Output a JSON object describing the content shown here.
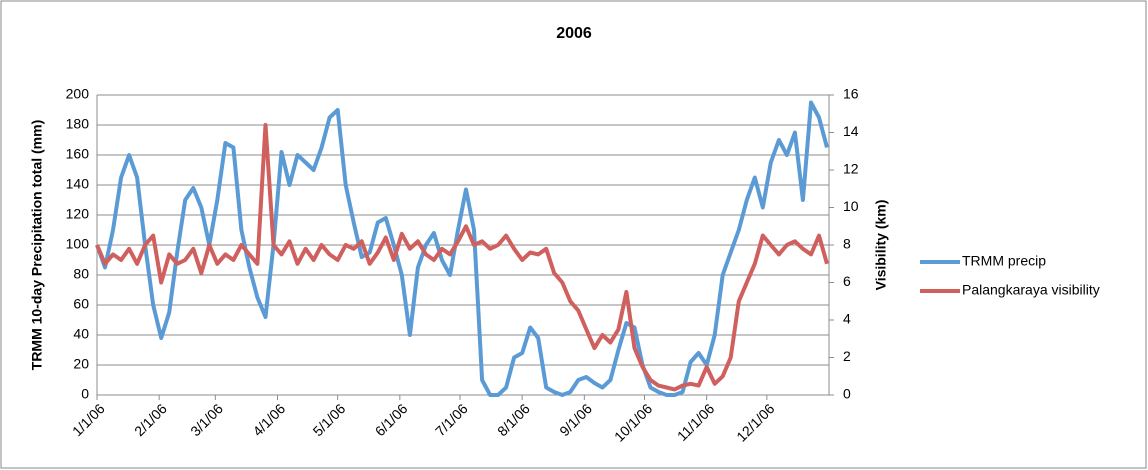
{
  "chart_data": {
    "type": "line",
    "title": "2006",
    "y_label": "TRMM 10-day Precipitation total (mm)",
    "y2_label": "Visibility (km)",
    "x": [
      0,
      4,
      8,
      12,
      16,
      20,
      24,
      28,
      32,
      36,
      40,
      44,
      48,
      52,
      56,
      60,
      64,
      68,
      72,
      76,
      80,
      84,
      88,
      92,
      96,
      100,
      104,
      108,
      112,
      116,
      120,
      124,
      128,
      132,
      136,
      140,
      144,
      148,
      152,
      156,
      160,
      164,
      168,
      172,
      176,
      180,
      184,
      188,
      192,
      196,
      200,
      204,
      208,
      212,
      216,
      220,
      224,
      228,
      232,
      236,
      240,
      244,
      248,
      252,
      256,
      260,
      264,
      268,
      272,
      276,
      280,
      284,
      288,
      292,
      296,
      300,
      304,
      308,
      312,
      316,
      320,
      324,
      328,
      332,
      336,
      340,
      344,
      348,
      352,
      356,
      360,
      364
    ],
    "xlim": [
      0,
      365
    ],
    "xticks": [
      {
        "value": 0,
        "label": "1/1/06"
      },
      {
        "value": 31,
        "label": "2/1/06"
      },
      {
        "value": 59,
        "label": "3/1/06"
      },
      {
        "value": 90,
        "label": "4/1/06"
      },
      {
        "value": 120,
        "label": "5/1/06"
      },
      {
        "value": 151,
        "label": "6/1/06"
      },
      {
        "value": 181,
        "label": "7/1/06"
      },
      {
        "value": 212,
        "label": "8/1/06"
      },
      {
        "value": 243,
        "label": "9/1/06"
      },
      {
        "value": 273,
        "label": "10/1/06"
      },
      {
        "value": 304,
        "label": "11/1/06"
      },
      {
        "value": 334,
        "label": "12/1/06"
      }
    ],
    "ylim": [
      0,
      200
    ],
    "yticks": [
      0,
      20,
      40,
      60,
      80,
      100,
      120,
      140,
      160,
      180,
      200
    ],
    "y2lim": [
      0,
      16
    ],
    "y2ticks": [
      0,
      2,
      4,
      6,
      8,
      10,
      12,
      14,
      16
    ],
    "grid": true,
    "legend": "right",
    "series": [
      {
        "name": "TRMM precip",
        "color": "#5b9bd5",
        "values": [
          100,
          85,
          110,
          145,
          160,
          145,
          100,
          60,
          38,
          55,
          95,
          130,
          138,
          125,
          100,
          130,
          168,
          165,
          110,
          85,
          65,
          52,
          100,
          162,
          140,
          160,
          155,
          150,
          165,
          185,
          190,
          140,
          115,
          92,
          95,
          115,
          118,
          100,
          80,
          40,
          85,
          100,
          108,
          90,
          80,
          110,
          137,
          110,
          10,
          0,
          0,
          5,
          25,
          28,
          45,
          38,
          5,
          2,
          0,
          2,
          10,
          12,
          8,
          5,
          10,
          30,
          48,
          45,
          20,
          5,
          2,
          0,
          0,
          2,
          22,
          28,
          20,
          40,
          80,
          95,
          110,
          130,
          145,
          125,
          155,
          170,
          160,
          175,
          130,
          195,
          185,
          165
        ]
      },
      {
        "name": "Palangkaraya visibility",
        "color": "#d0605e",
        "axis": "y2",
        "values": [
          8,
          7,
          7.5,
          7.2,
          7.8,
          7,
          8,
          8.5,
          6,
          7.5,
          7,
          7.2,
          7.8,
          6.5,
          8,
          7,
          7.5,
          7.2,
          8,
          7.5,
          7,
          14.4,
          8,
          7.5,
          8.2,
          7,
          7.8,
          7.2,
          8,
          7.5,
          7.2,
          8,
          7.8,
          8.2,
          7,
          7.6,
          8.4,
          7.2,
          8.6,
          7.8,
          8.2,
          7.5,
          7.2,
          7.8,
          7.5,
          8.2,
          9,
          8,
          8.2,
          7.8,
          8,
          8.5,
          7.8,
          7.2,
          7.6,
          7.5,
          7.8,
          6.5,
          6,
          5,
          4.5,
          3.5,
          2.5,
          3.2,
          2.8,
          3.5,
          5.5,
          2.5,
          1.5,
          0.8,
          0.5,
          0.4,
          0.3,
          0.5,
          0.6,
          0.5,
          1.5,
          0.6,
          1,
          2,
          5,
          6,
          7,
          8.5,
          8,
          7.5,
          8,
          8.2,
          7.8,
          7.5,
          8.5,
          7
        ]
      }
    ]
  }
}
